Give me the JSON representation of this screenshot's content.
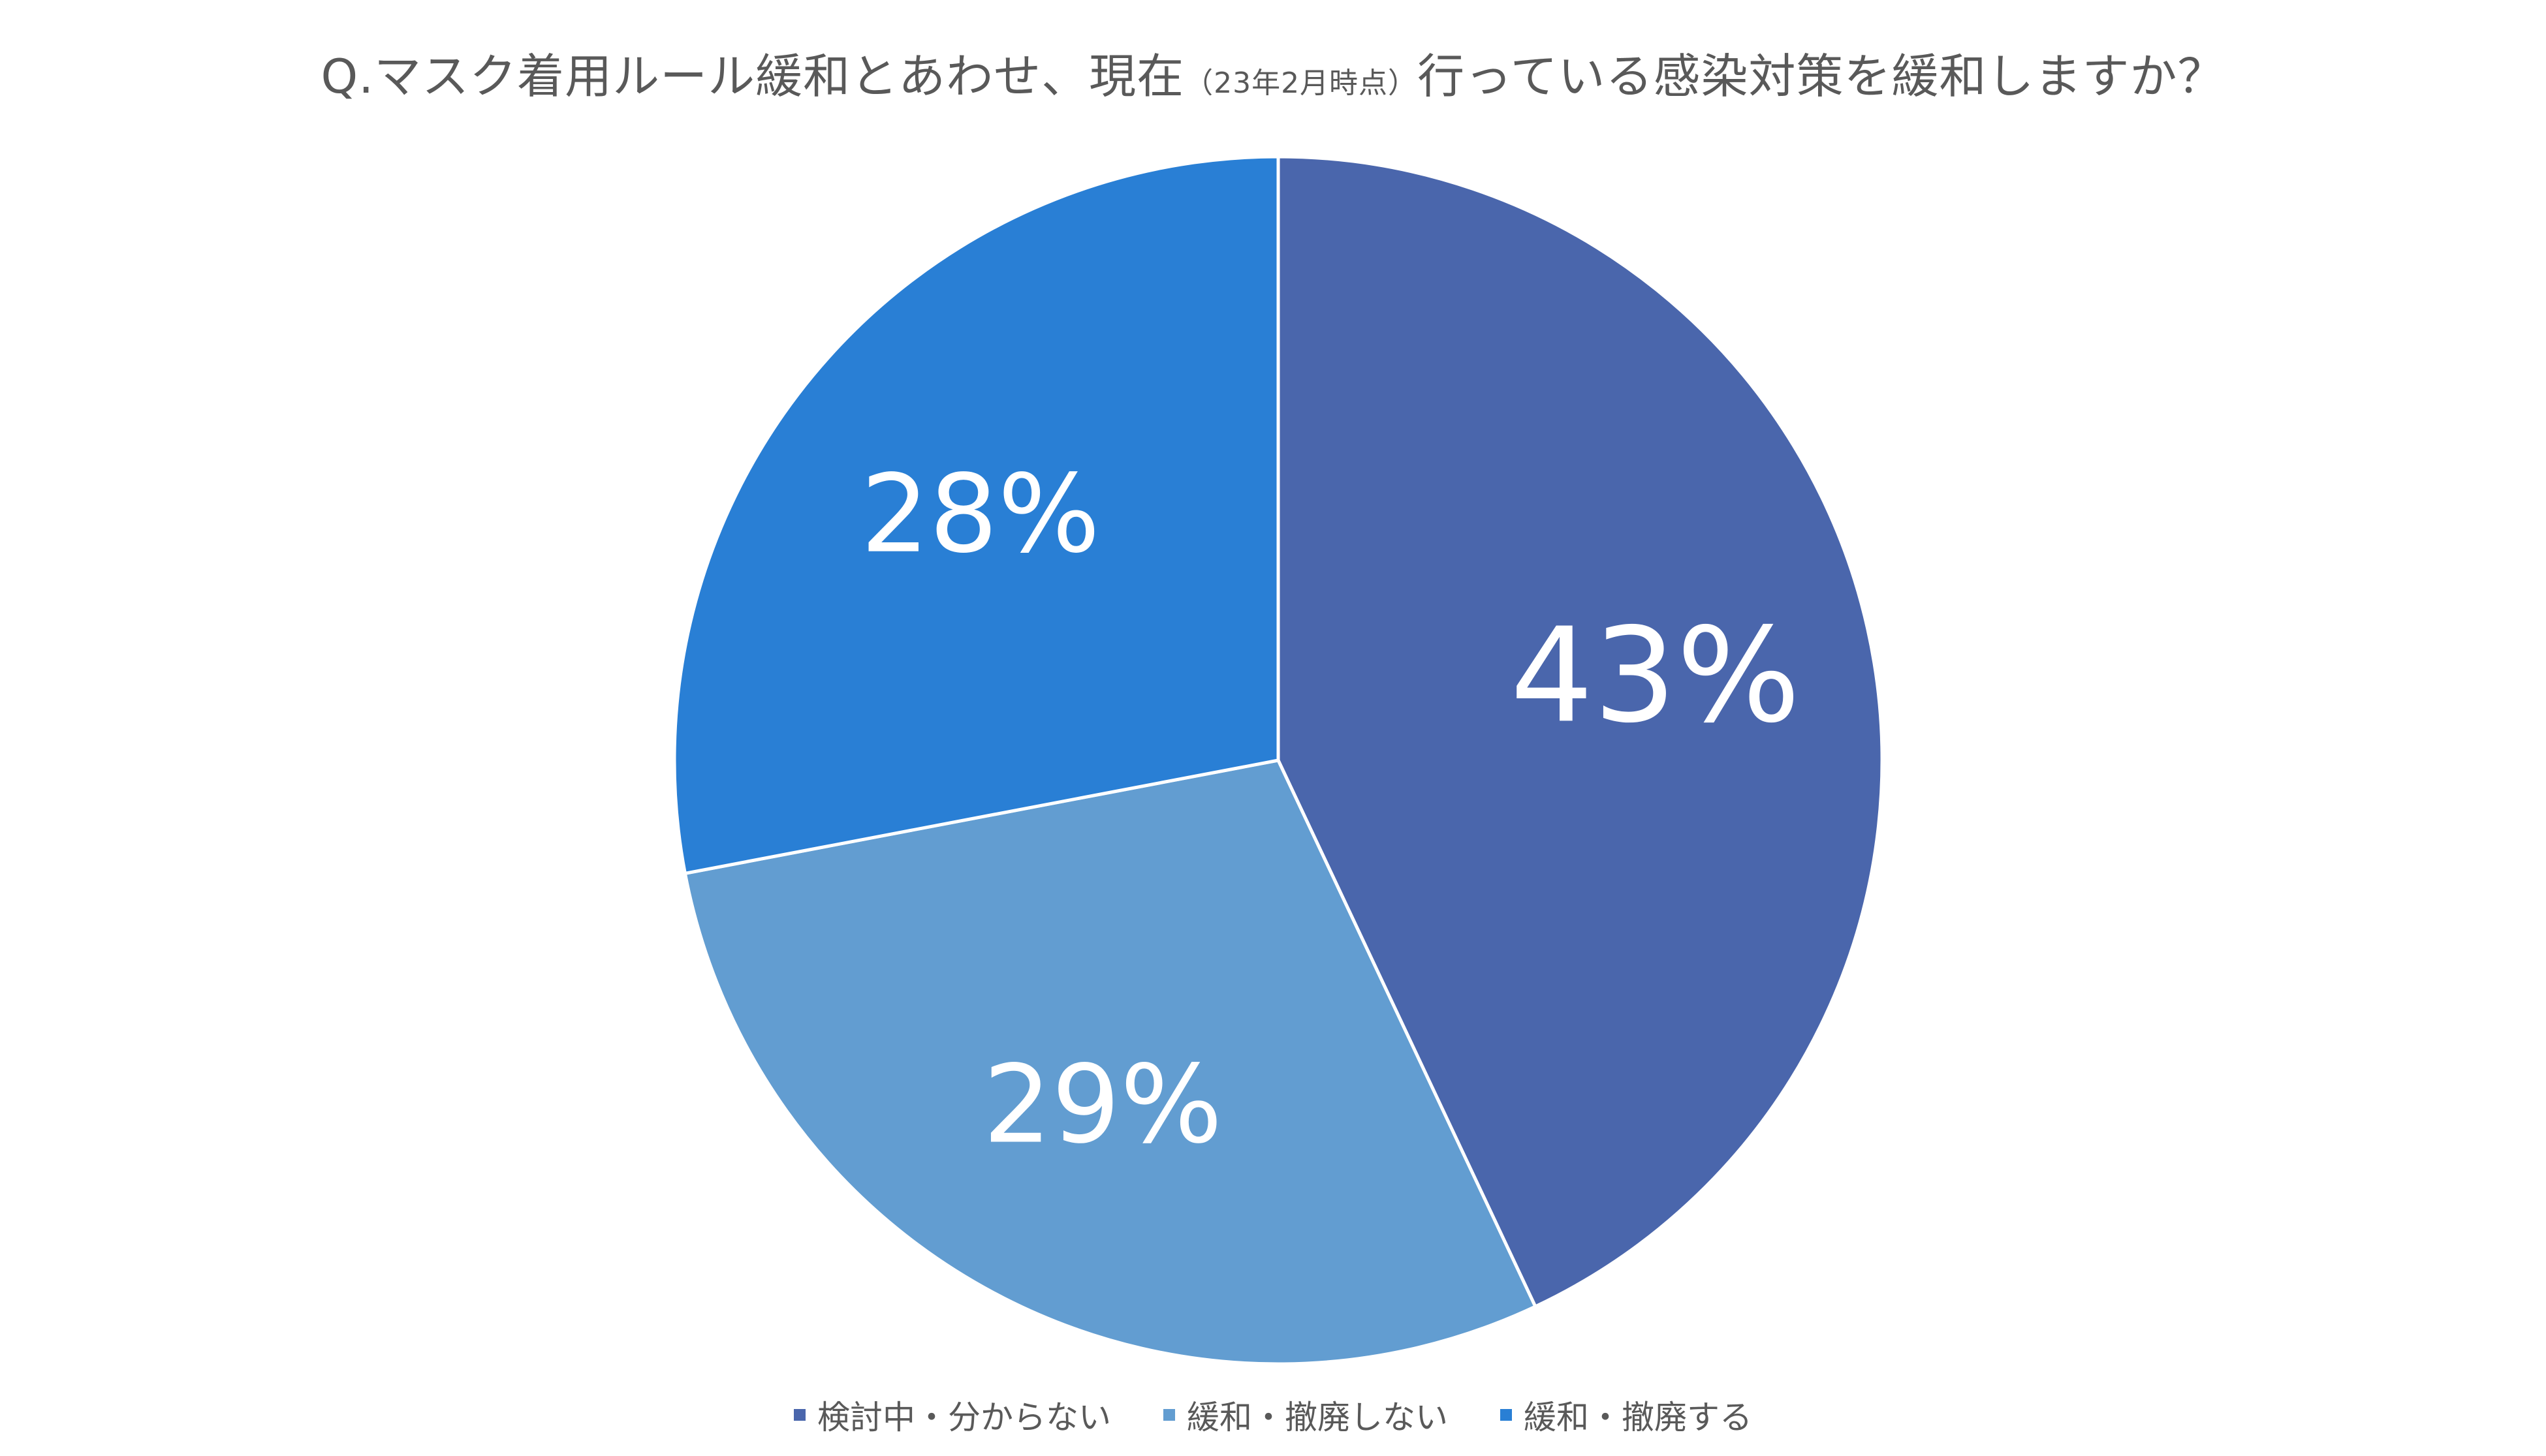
{
  "chart_data": {
    "type": "pie",
    "title": {
      "main": "Q.マスク着用ルール緩和とあわせ、現在",
      "note": "（23年2月時点）",
      "rest": "行っている感染対策を緩和しますか？"
    },
    "slices": [
      {
        "label": "検討中・分からない",
        "value": 43,
        "display": "43%",
        "color": "#4A66AC"
      },
      {
        "label": "緩和・撤廃しない",
        "value": 29,
        "display": "29%",
        "color": "#629DD1"
      },
      {
        "label": "緩和・撤廃する",
        "value": 28,
        "display": "28%",
        "color": "#297FD5"
      }
    ],
    "legend_position": "bottom"
  }
}
